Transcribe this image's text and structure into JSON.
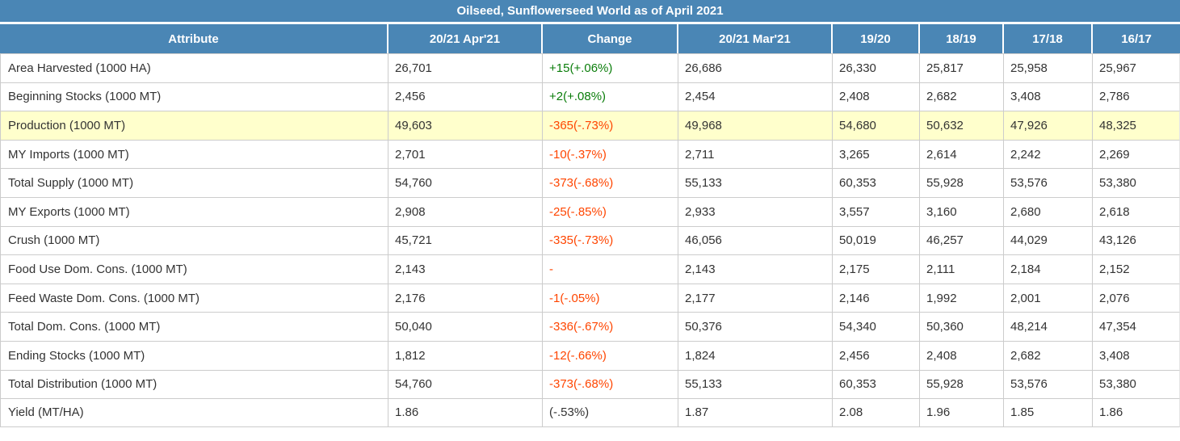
{
  "title": "Oilseed, Sunflowerseed World as of April 2021",
  "chart_data": {
    "type": "table",
    "title": "Oilseed, Sunflowerseed World as of April 2021",
    "columns": [
      "Attribute",
      "20/21 Apr'21",
      "Change",
      "20/21 Mar'21",
      "19/20",
      "18/19",
      "17/18",
      "16/17"
    ],
    "rows": [
      {
        "attribute": "Area Harvested (1000 HA)",
        "apr21": "26,701",
        "change": "+15(+.06%)",
        "change_style": "positive",
        "mar21": "26,686",
        "y19_20": "26,330",
        "y18_19": "25,817",
        "y17_18": "25,958",
        "y16_17": "25,967",
        "highlight": false
      },
      {
        "attribute": "Beginning Stocks (1000 MT)",
        "apr21": "2,456",
        "change": "+2(+.08%)",
        "change_style": "positive",
        "mar21": "2,454",
        "y19_20": "2,408",
        "y18_19": "2,682",
        "y17_18": "3,408",
        "y16_17": "2,786",
        "highlight": false
      },
      {
        "attribute": "Production (1000 MT)",
        "apr21": "49,603",
        "change": "-365(-.73%)",
        "change_style": "negative",
        "mar21": "49,968",
        "y19_20": "54,680",
        "y18_19": "50,632",
        "y17_18": "47,926",
        "y16_17": "48,325",
        "highlight": true
      },
      {
        "attribute": "MY Imports (1000 MT)",
        "apr21": "2,701",
        "change": "-10(-.37%)",
        "change_style": "negative",
        "mar21": "2,711",
        "y19_20": "3,265",
        "y18_19": "2,614",
        "y17_18": "2,242",
        "y16_17": "2,269",
        "highlight": false
      },
      {
        "attribute": "Total Supply (1000 MT)",
        "apr21": "54,760",
        "change": "-373(-.68%)",
        "change_style": "negative",
        "mar21": "55,133",
        "y19_20": "60,353",
        "y18_19": "55,928",
        "y17_18": "53,576",
        "y16_17": "53,380",
        "highlight": false
      },
      {
        "attribute": "MY Exports (1000 MT)",
        "apr21": "2,908",
        "change": "-25(-.85%)",
        "change_style": "negative",
        "mar21": "2,933",
        "y19_20": "3,557",
        "y18_19": "3,160",
        "y17_18": "2,680",
        "y16_17": "2,618",
        "highlight": false
      },
      {
        "attribute": "Crush (1000 MT)",
        "apr21": "45,721",
        "change": "-335(-.73%)",
        "change_style": "negative",
        "mar21": "46,056",
        "y19_20": "50,019",
        "y18_19": "46,257",
        "y17_18": "44,029",
        "y16_17": "43,126",
        "highlight": false
      },
      {
        "attribute": "Food Use Dom. Cons. (1000 MT)",
        "apr21": "2,143",
        "change": "-",
        "change_style": "negative",
        "mar21": "2,143",
        "y19_20": "2,175",
        "y18_19": "2,111",
        "y17_18": "2,184",
        "y16_17": "2,152",
        "highlight": false
      },
      {
        "attribute": "Feed Waste Dom. Cons. (1000 MT)",
        "apr21": "2,176",
        "change": "-1(-.05%)",
        "change_style": "negative",
        "mar21": "2,177",
        "y19_20": "2,146",
        "y18_19": "1,992",
        "y17_18": "2,001",
        "y16_17": "2,076",
        "highlight": false
      },
      {
        "attribute": "Total Dom. Cons. (1000 MT)",
        "apr21": "50,040",
        "change": "-336(-.67%)",
        "change_style": "negative",
        "mar21": "50,376",
        "y19_20": "54,340",
        "y18_19": "50,360",
        "y17_18": "48,214",
        "y16_17": "47,354",
        "highlight": false
      },
      {
        "attribute": "Ending Stocks (1000 MT)",
        "apr21": "1,812",
        "change": "-12(-.66%)",
        "change_style": "negative",
        "mar21": "1,824",
        "y19_20": "2,456",
        "y18_19": "2,408",
        "y17_18": "2,682",
        "y16_17": "3,408",
        "highlight": false
      },
      {
        "attribute": "Total Distribution (1000 MT)",
        "apr21": "54,760",
        "change": "-373(-.68%)",
        "change_style": "negative",
        "mar21": "55,133",
        "y19_20": "60,353",
        "y18_19": "55,928",
        "y17_18": "53,576",
        "y16_17": "53,380",
        "highlight": false
      },
      {
        "attribute": "Yield (MT/HA)",
        "apr21": "1.86",
        "change": "(-.53%)",
        "change_style": "neutral",
        "mar21": "1.87",
        "y19_20": "2.08",
        "y18_19": "1.96",
        "y17_18": "1.85",
        "y16_17": "1.86",
        "highlight": false
      }
    ]
  },
  "colors": {
    "header_bg": "#4a86b5",
    "header_text": "#ffffff",
    "row_bg": "#ffffff",
    "highlight_row_bg": "#ffffcc",
    "positive_change": "#0a7d0a",
    "negative_change": "#ff4500",
    "neutral_change": "#333333",
    "cell_text": "#333333",
    "grid_line": "#cccccc"
  }
}
